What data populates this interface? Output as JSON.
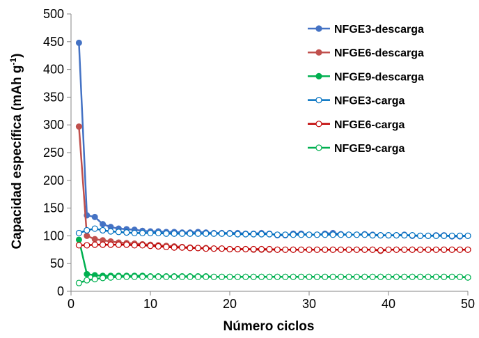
{
  "chart_data": {
    "type": "line",
    "title": "",
    "xlabel": "Número ciclos",
    "ylabel": "Capacidad específica (mAh g",
    "ylabel_sup": "-1",
    "ylabel_close": ")",
    "xlim": [
      0,
      50
    ],
    "ylim": [
      0,
      500
    ],
    "xticks": [
      0,
      10,
      20,
      30,
      40,
      50
    ],
    "yticks": [
      0,
      50,
      100,
      150,
      200,
      250,
      300,
      350,
      400,
      450,
      500
    ],
    "grid": false,
    "legend_position": "top-right",
    "x": [
      1,
      2,
      3,
      4,
      5,
      6,
      7,
      8,
      9,
      10,
      11,
      12,
      13,
      14,
      15,
      16,
      17,
      18,
      19,
      20,
      21,
      22,
      23,
      24,
      25,
      26,
      27,
      28,
      29,
      30,
      31,
      32,
      33,
      34,
      35,
      36,
      37,
      38,
      39,
      40,
      41,
      42,
      43,
      44,
      45,
      46,
      47,
      48,
      49,
      50
    ],
    "series": [
      {
        "name": "NFGE3-descarga",
        "color": "#4472C4",
        "marker": "filled",
        "values": [
          448,
          137,
          134,
          121,
          116,
          113,
          112,
          111,
          109,
          108,
          108,
          107,
          107,
          106,
          106,
          107,
          106,
          105,
          105,
          105,
          105,
          104,
          104,
          105,
          104,
          101,
          101,
          104,
          104,
          102,
          102,
          104,
          105,
          103,
          102,
          102,
          103,
          102,
          101,
          101,
          101,
          102,
          100,
          100,
          100,
          101,
          101,
          99,
          99,
          100
        ]
      },
      {
        "name": "NFGE6-descarga",
        "color": "#C0504D",
        "marker": "filled",
        "values": [
          297,
          100,
          94,
          92,
          90,
          88,
          87,
          86,
          85,
          84,
          83,
          82,
          81,
          80,
          79,
          78,
          78,
          77,
          77,
          76,
          76,
          76,
          75,
          75,
          75,
          75,
          75,
          75,
          75,
          75,
          75,
          75,
          75,
          75,
          75,
          75,
          75,
          75,
          73,
          75,
          75,
          75,
          75,
          75,
          75,
          75,
          75,
          75,
          75,
          75
        ]
      },
      {
        "name": "NFGE9-descarga",
        "color": "#00B050",
        "marker": "filled",
        "values": [
          93,
          31,
          29,
          28,
          28,
          28,
          28,
          28,
          28,
          27,
          27,
          27,
          27,
          27,
          27,
          27,
          27,
          26,
          26,
          26,
          26,
          26,
          26,
          26,
          26,
          26,
          26,
          26,
          26,
          26,
          26,
          26,
          26,
          26,
          26,
          26,
          26,
          26,
          26,
          26,
          26,
          26,
          26,
          26,
          26,
          26,
          26,
          26,
          26,
          25
        ]
      },
      {
        "name": "NFGE3-carga",
        "color": "#0070C0",
        "marker": "open",
        "values": [
          105,
          110,
          113,
          110,
          108,
          107,
          106,
          105,
          105,
          105,
          105,
          104,
          104,
          104,
          104,
          104,
          104,
          104,
          104,
          104,
          103,
          103,
          103,
          103,
          103,
          102,
          102,
          102,
          102,
          102,
          102,
          102,
          102,
          102,
          102,
          102,
          102,
          101,
          101,
          101,
          101,
          101,
          101,
          100,
          100,
          100,
          100,
          100,
          100,
          100
        ]
      },
      {
        "name": "NFGE6-carga",
        "color": "#C00000",
        "marker": "open",
        "values": [
          83,
          83,
          84,
          84,
          84,
          84,
          84,
          83,
          83,
          82,
          81,
          80,
          79,
          79,
          78,
          78,
          77,
          77,
          77,
          76,
          76,
          76,
          76,
          76,
          76,
          75,
          75,
          75,
          75,
          75,
          75,
          75,
          75,
          75,
          75,
          75,
          75,
          75,
          74,
          75,
          75,
          75,
          75,
          75,
          75,
          75,
          75,
          75,
          75,
          75
        ]
      },
      {
        "name": "NFGE9-carga",
        "color": "#00B050",
        "marker": "open",
        "values": [
          15,
          20,
          22,
          24,
          25,
          26,
          26,
          26,
          26,
          26,
          26,
          26,
          26,
          26,
          26,
          26,
          26,
          26,
          26,
          26,
          26,
          26,
          26,
          26,
          26,
          26,
          26,
          26,
          26,
          26,
          26,
          26,
          26,
          26,
          26,
          26,
          26,
          26,
          26,
          26,
          26,
          26,
          26,
          26,
          26,
          26,
          26,
          26,
          26,
          25
        ]
      }
    ]
  }
}
